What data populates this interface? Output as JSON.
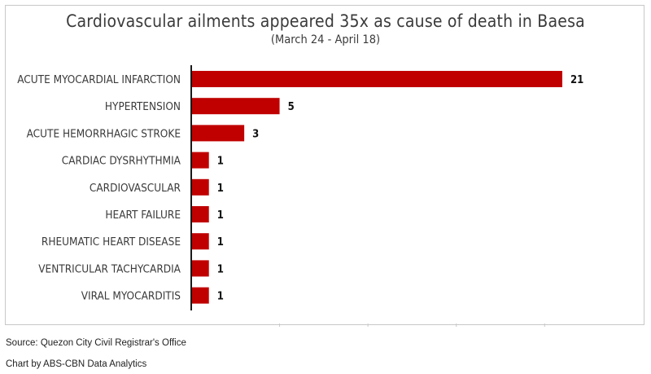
{
  "chart_data": {
    "type": "bar",
    "orientation": "horizontal",
    "title": "Cardiovascular ailments appeared 35x as cause of death in Baesa",
    "subtitle": "(March 24 - April 18)",
    "categories": [
      "ACUTE MYOCARDIAL INFARCTION",
      "HYPERTENSION",
      "ACUTE HEMORRHAGIC STROKE",
      "CARDIAC DYSRHYTHMIA",
      "CARDIOVASCULAR",
      "HEART FAILURE",
      "RHEUMATIC HEART DISEASE",
      "VENTRICULAR TACHYCARDIA",
      "VIRAL MYOCARDITIS"
    ],
    "values": [
      21,
      5,
      3,
      1,
      1,
      1,
      1,
      1,
      1
    ],
    "xlim": [
      0,
      25
    ],
    "bar_color": "#c00000",
    "grid": false
  },
  "footer": {
    "source": "Source: Quezon City Civil Registrar's Office",
    "credit": "Chart by ABS-CBN Data Analytics"
  }
}
